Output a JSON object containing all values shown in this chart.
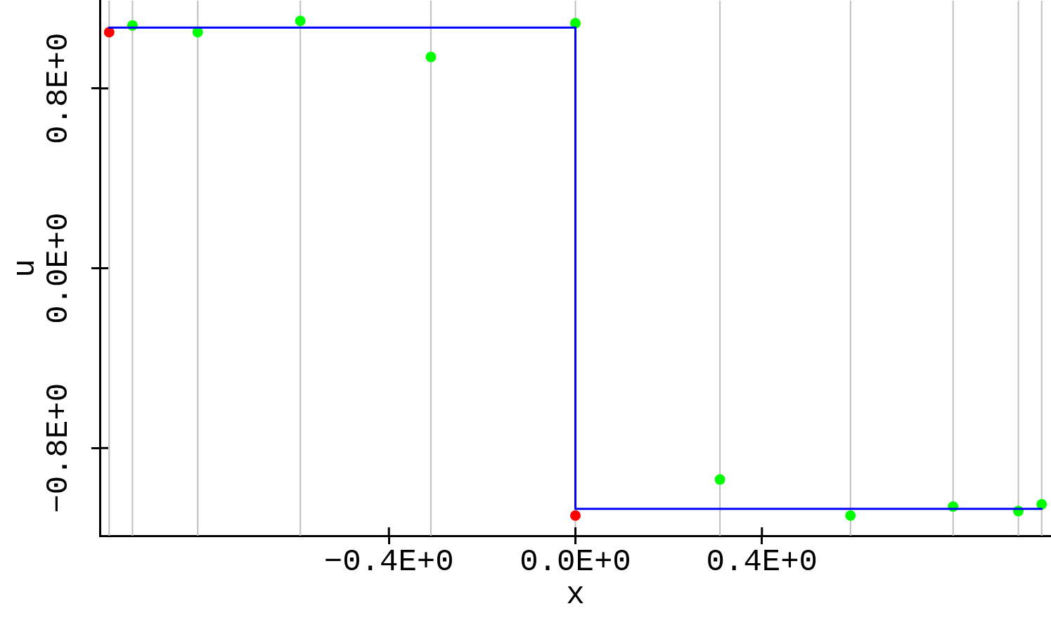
{
  "chart_data": {
    "type": "scatter",
    "xlabel": "x",
    "ylabel": "u",
    "xlim": [
      -1.02,
      1.02
    ],
    "ylim": [
      -1.19,
      1.19
    ],
    "xticks": [
      {
        "value": -0.4,
        "label": "−0.4E+0"
      },
      {
        "value": 0,
        "label": "0.0E+0"
      },
      {
        "value": 0.4,
        "label": "0.4E+0"
      }
    ],
    "yticks": [
      {
        "value": -0.8,
        "label": "−0.8E+0"
      },
      {
        "value": 0,
        "label": "0.0E+0"
      },
      {
        "value": 0.8,
        "label": "0.8E+0"
      }
    ],
    "ref_lines": [
      {
        "axis": "x",
        "value": -1,
        "color": "#c0c0c0"
      },
      {
        "axis": "x",
        "value": -0.95,
        "color": "#c0c0c0"
      },
      {
        "axis": "x",
        "value": -0.81,
        "color": "#c0c0c0"
      },
      {
        "axis": "x",
        "value": -0.59,
        "color": "#c0c0c0"
      },
      {
        "axis": "x",
        "value": -0.31,
        "color": "#c0c0c0"
      },
      {
        "axis": "x",
        "value": 0,
        "color": "#c0c0c0"
      },
      {
        "axis": "x",
        "value": 0.31,
        "color": "#c0c0c0"
      },
      {
        "axis": "x",
        "value": 0.59,
        "color": "#c0c0c0"
      },
      {
        "axis": "x",
        "value": 0.81,
        "color": "#c0c0c0"
      },
      {
        "axis": "x",
        "value": 0.95,
        "color": "#c0c0c0"
      },
      {
        "axis": "x",
        "value": 1,
        "color": "#c0c0c0"
      }
    ],
    "series": [
      {
        "type": "line",
        "color": "#0000ff",
        "x": [
          -1,
          0,
          0,
          1
        ],
        "values": [
          1.07,
          1.07,
          -1.07,
          -1.07
        ],
        "marker": "none",
        "line_style": "solid"
      },
      {
        "color": "#00ff00",
        "x": [
          -0.95,
          -0.81,
          -0.59,
          -0.31,
          0,
          0.31,
          0.59,
          0.81,
          0.95,
          1
        ],
        "values": [
          1.08,
          1.05,
          1.1,
          0.94,
          1.09,
          -0.94,
          -1.1,
          -1.06,
          -1.08,
          -1.05
        ],
        "marker": "circle"
      },
      {
        "color": "#ff0000",
        "x": [
          -1,
          0
        ],
        "values": [
          1.05,
          -1.1
        ],
        "marker": "circle"
      }
    ]
  }
}
